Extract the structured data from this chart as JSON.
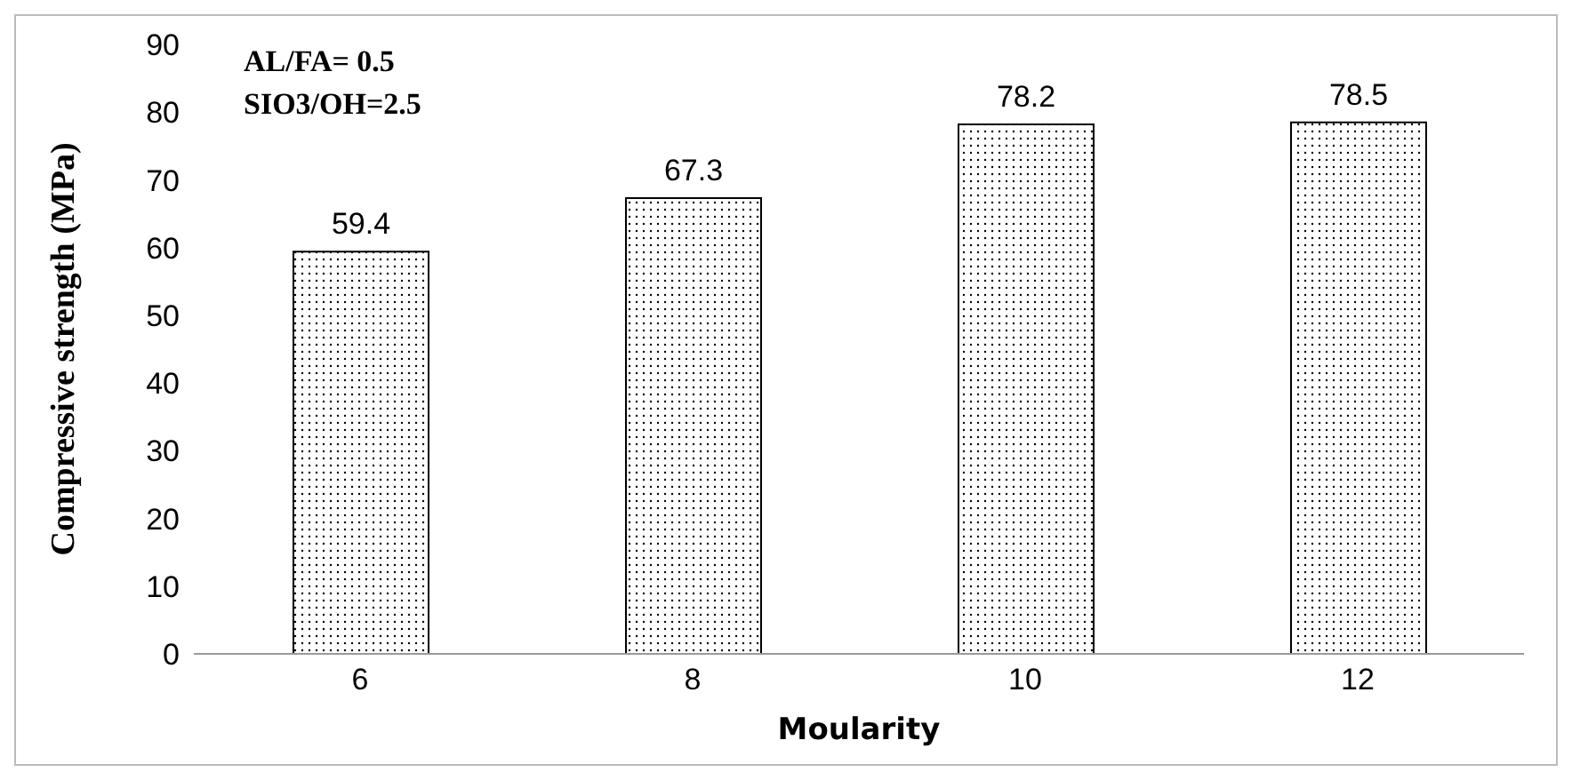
{
  "chart_data": {
    "type": "bar",
    "xlabel": "Moularity",
    "ylabel": "Compressive strength (MPa)",
    "categories": [
      "6",
      "8",
      "10",
      "12"
    ],
    "values": [
      59.4,
      67.3,
      78.2,
      78.5
    ],
    "color": "#000000",
    "ylim": [
      0,
      90
    ],
    "yticks": [
      0,
      10,
      20,
      30,
      40,
      50,
      60,
      70,
      80,
      90
    ],
    "data_labels": true,
    "annotations": [
      "AL/FA= 0.5",
      "SIO3/OH=2.5"
    ]
  }
}
